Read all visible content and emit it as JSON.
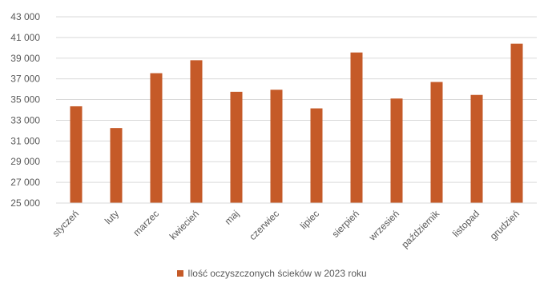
{
  "chart_data": {
    "type": "bar",
    "categories": [
      "styczeń",
      "luty",
      "marzec",
      "kwiecień",
      "maj",
      "czerwiec",
      "lipiec",
      "sierpień",
      "wrzesień",
      "październik",
      "listopad",
      "grudzień"
    ],
    "series": [
      {
        "name": "Ilość oczyszczonych ścieków w 2023 roku",
        "color": "#C55A28",
        "values": [
          34350,
          32250,
          37550,
          38800,
          35750,
          35950,
          34150,
          39550,
          35100,
          36700,
          35450,
          40400
        ]
      }
    ],
    "ylim": [
      25000,
      43000
    ],
    "ytick_labels": [
      "25 000",
      "27 000",
      "29 000",
      "31 000",
      "33 000",
      "35 000",
      "37 000",
      "39 000",
      "41 000",
      "43 000"
    ],
    "ytick_values": [
      25000,
      27000,
      29000,
      31000,
      33000,
      35000,
      37000,
      39000,
      41000,
      43000
    ],
    "grid": true,
    "legend_position": "bottom",
    "colors": {
      "bar": "#C55A28",
      "grid": "#D9D9D9",
      "text": "#595959"
    }
  }
}
